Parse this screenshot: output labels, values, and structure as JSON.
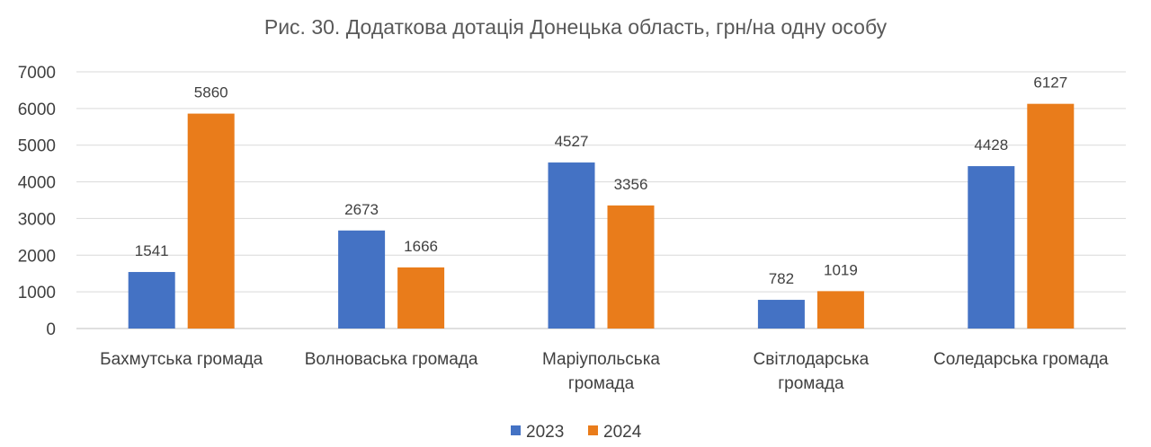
{
  "chart_data": {
    "type": "bar",
    "title": "Рис. 30. Додаткова дотація Донецька область, грн/на одну особу",
    "categories": [
      [
        "Бахмутська громада"
      ],
      [
        "Волноваська громада"
      ],
      [
        "Маріупольська",
        "громада"
      ],
      [
        "Світлодарська",
        "громада"
      ],
      [
        "Соледарська громада"
      ]
    ],
    "series": [
      {
        "name": "2023",
        "color": "#4472C4",
        "values": [
          1541,
          2673,
          4527,
          782,
          4428
        ]
      },
      {
        "name": "2024",
        "color": "#E97C1B",
        "values": [
          5860,
          1666,
          3356,
          1019,
          6127
        ]
      }
    ],
    "ylim": [
      0,
      7000
    ],
    "yticks": [
      0,
      1000,
      2000,
      3000,
      4000,
      5000,
      6000,
      7000
    ],
    "grid": true,
    "legend": "bottom-center"
  }
}
